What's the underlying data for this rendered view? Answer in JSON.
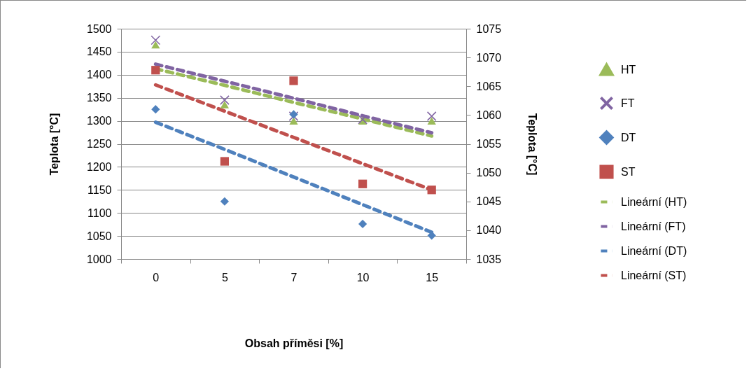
{
  "chart_data": {
    "type": "scatter",
    "xlabel": "Obsah příměsi [%]",
    "ylabel": "Teplota [°C]",
    "y2label": "Teplota [°C]",
    "categories": [
      "0",
      "5",
      "7",
      "10",
      "15"
    ],
    "ylim": [
      1000,
      1500
    ],
    "yticks": [
      1000,
      1050,
      1100,
      1150,
      1200,
      1250,
      1300,
      1350,
      1400,
      1450,
      1500
    ],
    "y2lim": [
      1035,
      1075
    ],
    "y2ticks": [
      1035,
      1040,
      1045,
      1050,
      1055,
      1060,
      1065,
      1070,
      1075
    ],
    "grid": "y",
    "legend": "right",
    "series": [
      {
        "name": "HT",
        "type": "scatter",
        "marker": "triangle",
        "color": "#9bbb59",
        "values": [
          1465,
          1335,
          1300,
          1300,
          1300
        ]
      },
      {
        "name": "FT",
        "type": "scatter",
        "marker": "cross",
        "color": "#8064a2",
        "values": [
          1475,
          1345,
          1310,
          1303,
          1310
        ]
      },
      {
        "name": "DT",
        "type": "scatter",
        "marker": "diamond",
        "color": "#4f81bd",
        "values": [
          1325,
          1125,
          1314,
          1076,
          1051
        ]
      },
      {
        "name": "ST",
        "type": "scatter",
        "marker": "square",
        "color": "#c0504d",
        "values": [
          1410,
          1212,
          1387,
          1163,
          1150
        ]
      },
      {
        "name": "Lineární (HT)",
        "type": "line",
        "line_style": "dashed",
        "color": "#9bbb59",
        "values": [
          1413,
          1377,
          1340,
          1304,
          1267
        ]
      },
      {
        "name": "Lineární (FT)",
        "type": "line",
        "line_style": "dashed",
        "color": "#8064a2",
        "values": [
          1423,
          1386,
          1349,
          1311,
          1274
        ]
      },
      {
        "name": "Lineární (DT)",
        "type": "line",
        "line_style": "dashed",
        "color": "#4f81bd",
        "values": [
          1297,
          1238,
          1178,
          1118,
          1058
        ]
      },
      {
        "name": "Lineární (ST)",
        "type": "line",
        "line_style": "dashed",
        "color": "#c0504d",
        "values": [
          1378,
          1321,
          1264,
          1207,
          1150
        ]
      }
    ]
  }
}
